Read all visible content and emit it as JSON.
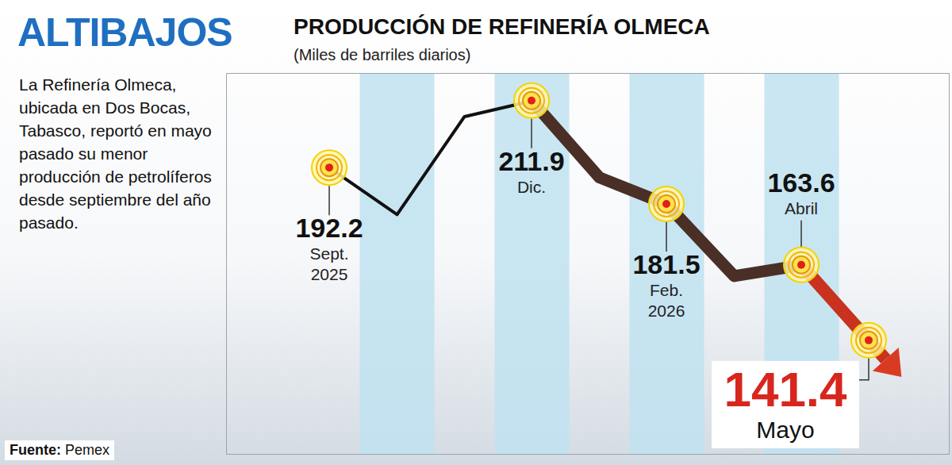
{
  "chart_data": {
    "type": "line",
    "headline": "ALTIBAJOS",
    "title": "PRODUCCIÓN DE REFINERÍA OLMECA",
    "subtitle": "(Miles de barriles diarios)",
    "description": "La Refinería Olmeca, ubicada en Dos Bocas, Tabasco, reportó en mayo pasado su menor producción de petrolíferos desde septiembre del año pasado.",
    "source": "Fuente: Pemex",
    "categories": [
      "Sept. 2025",
      null,
      null,
      "Dic.",
      null,
      "Feb. 2026",
      null,
      "Abril",
      "Mayo"
    ],
    "values": [
      192.2,
      178.5,
      207.3,
      211.9,
      189.4,
      181.5,
      160.4,
      163.6,
      141.4
    ],
    "value_labels": [
      "192.2",
      null,
      null,
      "211.9",
      null,
      "181.5",
      null,
      "163.6",
      "141.4"
    ],
    "color": "#4a2f27",
    "marker": "circle",
    "ylim": [
      108,
      220
    ],
    "yticks": [],
    "tick_labels": false,
    "grid": false
  }
}
